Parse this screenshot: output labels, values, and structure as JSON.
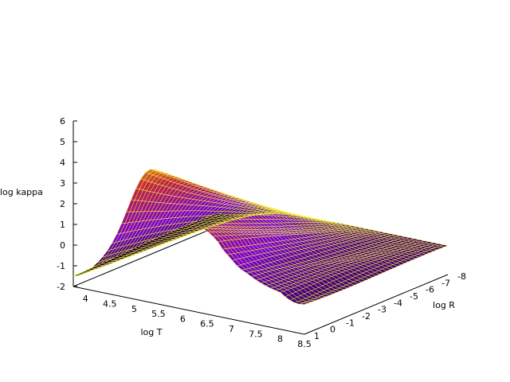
{
  "chart_data": {
    "type": "surface",
    "title": "",
    "xlabel": "log T",
    "ylabel": "log R",
    "zlabel": "log kappa",
    "xlim": [
      3.75,
      8.5
    ],
    "ylim": [
      -8,
      1
    ],
    "zlim": [
      -2,
      6
    ],
    "x_ticks": [
      "4",
      "4.5",
      "5",
      "5.5",
      "6",
      "6.5",
      "7",
      "7.5",
      "8",
      "8.5"
    ],
    "y_ticks": [
      "-8",
      "-7",
      "-6",
      "-5",
      "-4",
      "-3",
      "-2",
      "-1",
      "0",
      "1"
    ],
    "z_ticks": [
      "-2",
      "-1",
      "0",
      "1",
      "2",
      "3",
      "4",
      "5",
      "6"
    ],
    "palette": [
      "#000000",
      "#7a00d6",
      "#c0263e",
      "#ffff00"
    ],
    "mesh_color": "#ffff40",
    "grid": false,
    "legend": "none"
  }
}
